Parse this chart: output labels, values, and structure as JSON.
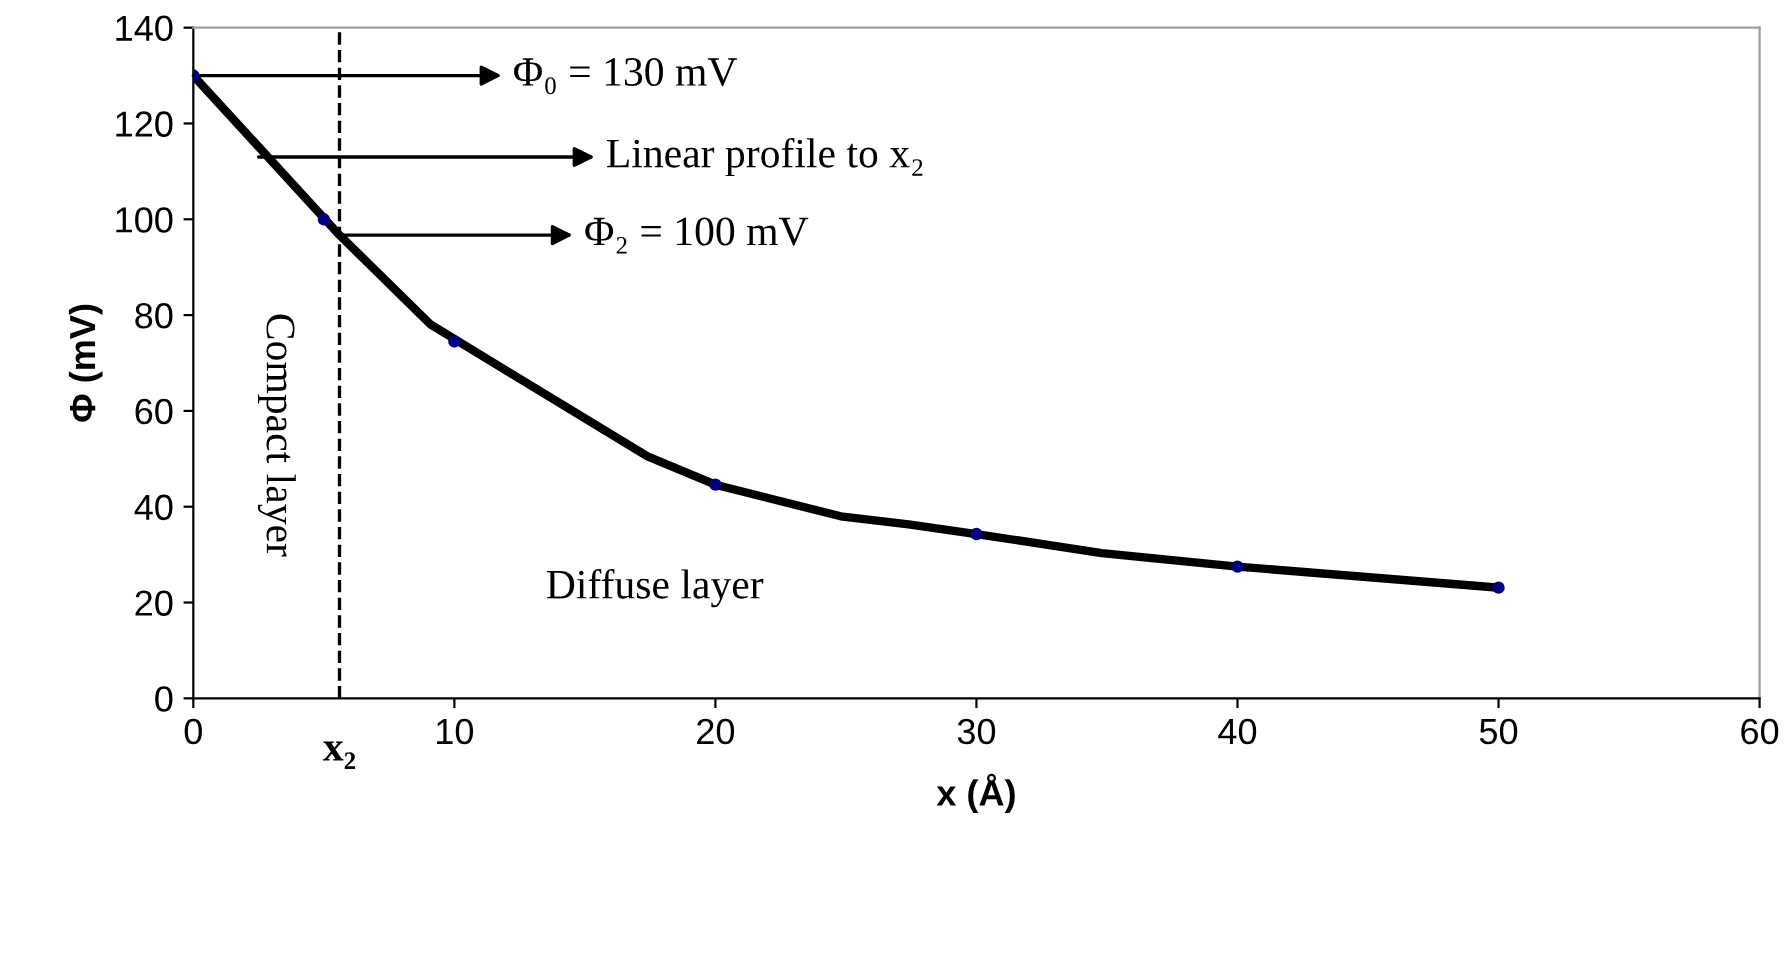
{
  "chart_data": {
    "type": "line",
    "xlabel": "x (Å)",
    "ylabel": "Φ (mV)",
    "xlim": [
      0,
      60
    ],
    "xticks": [
      0,
      10,
      20,
      30,
      40,
      50,
      60
    ],
    "ylim": [
      0,
      140
    ],
    "yticks": [
      0,
      20,
      40,
      60,
      80,
      100,
      120,
      140
    ],
    "grid": false,
    "legend": false,
    "line_style": "solid",
    "series": [
      {
        "color": "#000000",
        "marker": "none",
        "x": [
          0,
          5.6,
          9.1,
          17.4,
          20,
          24.8,
          27.4,
          30,
          34.8,
          40,
          50
        ],
        "values": [
          130,
          96.7,
          78,
          50.5,
          44.6,
          38,
          36.3,
          34.3,
          30.3,
          27.5,
          23.1
        ]
      },
      {
        "type": "scatter",
        "color": "#000080",
        "marker": "circle",
        "x": [
          0,
          5,
          10,
          20,
          30,
          40,
          50
        ],
        "values": [
          130,
          100,
          74.5,
          44.6,
          34.3,
          27.5,
          23.1
        ]
      }
    ],
    "ref_lines": [
      {
        "axis": "x",
        "value": 5.6,
        "label": "x₂",
        "line_style": "dashed",
        "color": "#000000"
      }
    ],
    "annotations": [
      {
        "text": "Φ₀ = 130 mV",
        "x": 0,
        "y": 130
      },
      {
        "text": "Linear profile to x₂",
        "x": 2.5,
        "y": 113
      },
      {
        "text": "Φ₂ = 100 mV",
        "x": 5.6,
        "y": 96.7
      },
      "Compact layer",
      "Diffuse layer"
    ]
  }
}
